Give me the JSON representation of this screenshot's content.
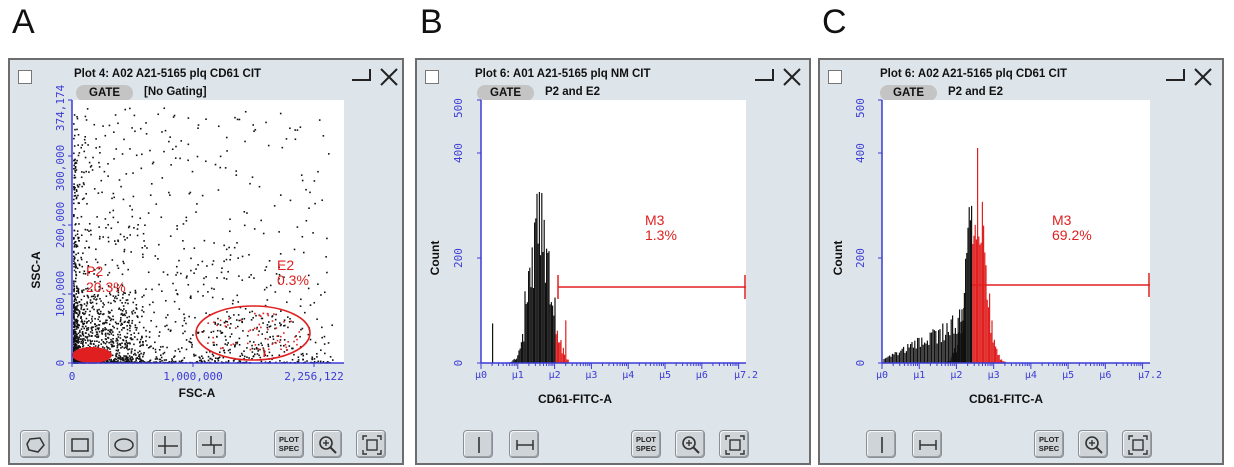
{
  "panels": [
    {
      "letter": "A",
      "title": "Plot 4: A02 A21-5165 plq CD61 CIT",
      "gate_label": "GATE",
      "gate_value": "[No Gating]",
      "x_axis_label": "FSC-A",
      "y_axis_label": "SSC-A",
      "x_ticks": [
        "0",
        "1,000,000",
        "2,256,122"
      ],
      "y_ticks": [
        "0",
        "100,000",
        "200,000",
        "300,000",
        "374,174"
      ],
      "gates": [
        {
          "name": "P2",
          "percent": "20.3%"
        },
        {
          "name": "E2",
          "percent": "0.3%"
        }
      ],
      "tools": [
        "polygon-gate",
        "rectangle-gate",
        "ellipse-gate",
        "quadrant-gate",
        "split-quadrant-gate",
        "plot-spec",
        "zoom-in",
        "fit-view"
      ],
      "plot_spec_label": [
        "PLOT",
        "SPEC"
      ]
    },
    {
      "letter": "B",
      "title": "Plot 6: A01 A21-5165 plq NM CIT",
      "gate_label": "GATE",
      "gate_value": "P2 and E2",
      "x_axis_label": "CD61-FITC-A",
      "y_axis_label": "Count",
      "x_ticks": [
        "μ0",
        "μ1",
        "μ2",
        "μ3",
        "μ4",
        "μ5",
        "μ6",
        "μ7.2"
      ],
      "y_ticks": [
        "0",
        "200",
        "400",
        "500"
      ],
      "marker": {
        "name": "M3",
        "percent": "1.3%"
      },
      "tools": [
        "vertical-marker",
        "range-marker",
        "plot-spec",
        "zoom-in",
        "fit-view"
      ],
      "plot_spec_label": [
        "PLOT",
        "SPEC"
      ]
    },
    {
      "letter": "C",
      "title": "Plot 6: A02 A21-5165 plq CD61 CIT",
      "gate_label": "GATE",
      "gate_value": "P2 and E2",
      "x_axis_label": "CD61-FITC-A",
      "y_axis_label": "Count",
      "x_ticks": [
        "μ0",
        "μ1",
        "μ2",
        "μ3",
        "μ4",
        "μ5",
        "μ6",
        "μ7.2"
      ],
      "y_ticks": [
        "0",
        "200",
        "400",
        "500"
      ],
      "marker": {
        "name": "M3",
        "percent": "69.2%"
      },
      "tools": [
        "vertical-marker",
        "range-marker",
        "plot-spec",
        "zoom-in",
        "fit-view"
      ],
      "plot_spec_label": [
        "PLOT",
        "SPEC"
      ]
    }
  ],
  "colors": {
    "axis": "#3b3bd6",
    "gate": "#e02020",
    "events": "#111111",
    "window_bg": "#dde4ea",
    "plot_bg": "#ffffff"
  }
}
